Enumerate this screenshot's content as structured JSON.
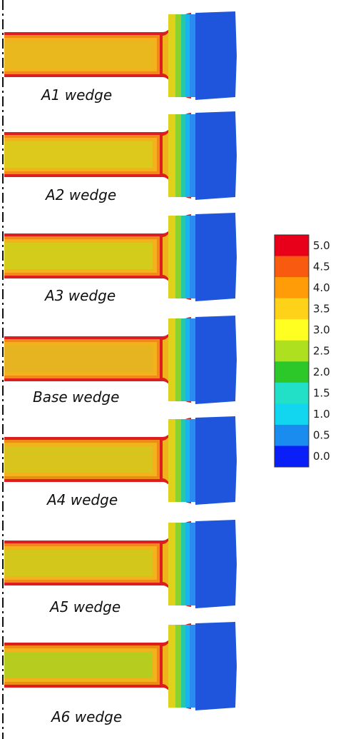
{
  "panels": [
    {
      "label": "A1 wedge",
      "mid_color": "#e8b81e"
    },
    {
      "label": "A2 wedge",
      "mid_color": "#dcc91c"
    },
    {
      "label": "A3 wedge",
      "mid_color": "#d4cc1a"
    },
    {
      "label": "Base wedge",
      "mid_color": "#e6b420"
    },
    {
      "label": "A4 wedge",
      "mid_color": "#d8c41c"
    },
    {
      "label": "A5 wedge",
      "mid_color": "#d2c71a"
    },
    {
      "label": "A6 wedge",
      "mid_color": "#b6cc1e"
    }
  ],
  "legend": {
    "labels": [
      "5.0",
      "4.5",
      "4.0",
      "3.5",
      "3.0",
      "2.5",
      "2.0",
      "1.5",
      "1.0",
      "0.5",
      "0.0"
    ],
    "colors": [
      "#e8001a",
      "#f85a10",
      "#ff9c08",
      "#ffd21a",
      "#ffff22",
      "#aee020",
      "#2cc82a",
      "#22e0c8",
      "#12d6f0",
      "#1a8cf0",
      "#0a1ef8"
    ]
  },
  "colors": {
    "edge_red": "#dc1e1e",
    "head_blue": "#1e55dc",
    "axis_line": "#111111"
  }
}
